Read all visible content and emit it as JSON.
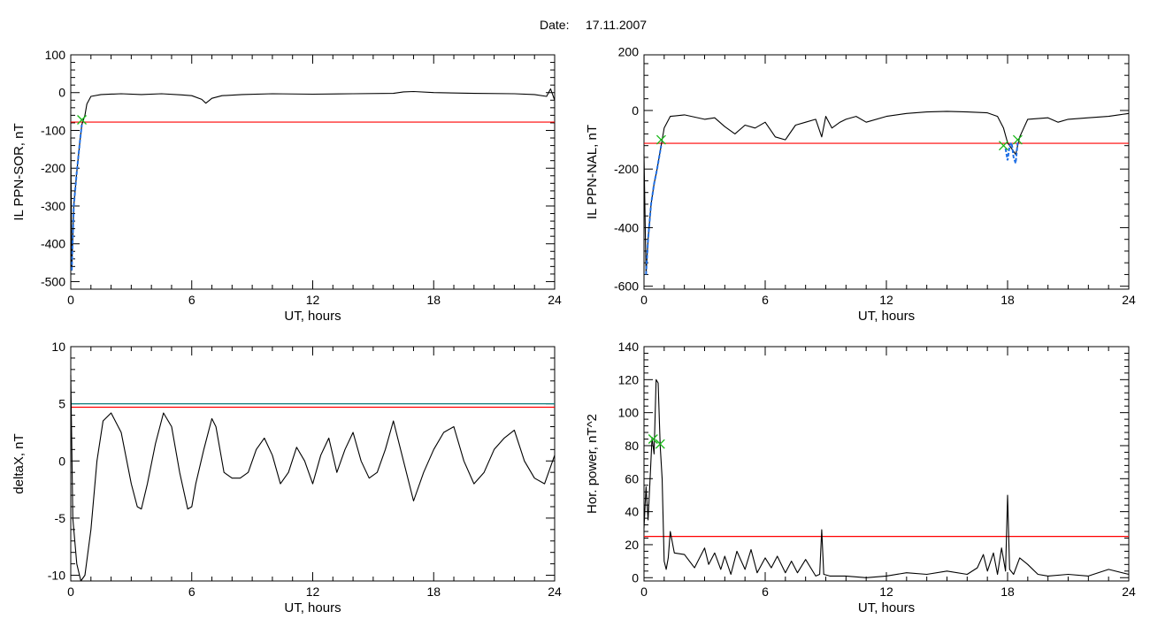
{
  "figure": {
    "date_prefix": "Date:",
    "date": "17.11.2007"
  },
  "colors": {
    "trace": "#000000",
    "threshold": "#ff0000",
    "threshold_alt": "#0a7c7c",
    "highlight": "#1f6fe5",
    "marker": "#19b919"
  },
  "chart_data": [
    {
      "type": "line",
      "title": "",
      "xlabel": "UT, hours",
      "ylabel": "IL PPN-SOR, nT",
      "xlim": [
        0,
        24
      ],
      "ylim": [
        -520,
        100
      ],
      "xticks": [
        0,
        6,
        12,
        18,
        24
      ],
      "yticks": [
        100,
        0,
        -100,
        -200,
        -300,
        -400,
        -500
      ],
      "threshold": -78,
      "series": [
        {
          "values": {
            "x": [
              0,
              0.05,
              0.15,
              0.3,
              0.45,
              0.55,
              0.7,
              0.8,
              1.0,
              1.5,
              2.5,
              3.5,
              4.5,
              5.5,
              6.0,
              6.5,
              6.7,
              7.0,
              7.5,
              8.5,
              10,
              12,
              14,
              16,
              16.5,
              17,
              18,
              20,
              22,
              23,
              23.6,
              23.8,
              24
            ],
            "y": [
              -120,
              -470,
              -300,
              -210,
              -130,
              -85,
              -60,
              -30,
              -10,
              -5,
              -3,
              -5,
              -3,
              -6,
              -8,
              -18,
              -28,
              -15,
              -8,
              -5,
              -3,
              -4,
              -3,
              -2,
              2,
              3,
              0,
              -2,
              -3,
              -5,
              -10,
              10,
              -20
            ]
          }
        }
      ],
      "highlight": {
        "x": [
          0.05,
          0.15,
          0.3,
          0.45,
          0.55
        ],
        "y": [
          -470,
          -300,
          -210,
          -130,
          -85
        ]
      },
      "markers": [
        {
          "x": 0.55,
          "y": -72
        }
      ]
    },
    {
      "type": "line",
      "title": "",
      "xlabel": "UT, hours",
      "ylabel": "IL PPN-NAL, nT",
      "xlim": [
        0,
        24
      ],
      "ylim": [
        -610,
        190
      ],
      "xticks": [
        0,
        6,
        12,
        18,
        24
      ],
      "yticks": [
        200,
        0,
        -200,
        -400,
        -600
      ],
      "threshold": -112,
      "series": [
        {
          "values": {
            "x": [
              0,
              0.1,
              0.2,
              0.35,
              0.5,
              0.65,
              0.85,
              1.0,
              1.3,
              2.0,
              3.0,
              3.5,
              4.0,
              4.5,
              5.0,
              5.5,
              6.0,
              6.5,
              7.0,
              7.5,
              8.0,
              8.5,
              8.8,
              9.0,
              9.3,
              9.7,
              10.0,
              10.5,
              11.0,
              12.0,
              13.0,
              14.0,
              15.0,
              16.0,
              17.0,
              17.5,
              17.8,
              18.0,
              18.2,
              18.4,
              18.6,
              19.0,
              20.0,
              20.5,
              21.0,
              22.0,
              23.0,
              23.5,
              24
            ],
            "y": [
              -150,
              -560,
              -440,
              -320,
              -250,
              -200,
              -120,
              -60,
              -20,
              -15,
              -30,
              -25,
              -55,
              -80,
              -50,
              -60,
              -40,
              -90,
              -100,
              -50,
              -40,
              -30,
              -90,
              -20,
              -60,
              -40,
              -30,
              -20,
              -40,
              -20,
              -10,
              -5,
              -3,
              -5,
              -8,
              -20,
              -60,
              -110,
              -130,
              -150,
              -90,
              -30,
              -25,
              -40,
              -30,
              -25,
              -20,
              -15,
              -10
            ]
          }
        }
      ],
      "highlight": {
        "x": [
          0.1,
          0.2,
          0.35,
          0.5,
          0.65,
          0.85,
          17.9,
          18.0,
          18.1,
          18.2,
          18.3,
          18.4,
          18.5
        ],
        "y": [
          -560,
          -440,
          -320,
          -250,
          -200,
          -120,
          -130,
          -170,
          -120,
          -110,
          -160,
          -180,
          -110
        ]
      },
      "markers": [
        {
          "x": 0.85,
          "y": -100
        },
        {
          "x": 17.8,
          "y": -120
        },
        {
          "x": 18.5,
          "y": -100
        }
      ]
    },
    {
      "type": "line",
      "title": "",
      "xlabel": "UT, hours",
      "ylabel": "deltaX, nT",
      "xlim": [
        0,
        24
      ],
      "ylim": [
        -10.5,
        10
      ],
      "xticks": [
        0,
        6,
        12,
        18,
        24
      ],
      "yticks": [
        10,
        5,
        0,
        -5,
        -10
      ],
      "threshold": 4.7,
      "threshold_alt": 5.0,
      "series": [
        {
          "values": {
            "x": [
              0,
              0.1,
              0.3,
              0.5,
              0.7,
              1.0,
              1.3,
              1.6,
              2.0,
              2.5,
              3.0,
              3.3,
              3.5,
              3.8,
              4.2,
              4.6,
              5.0,
              5.4,
              5.8,
              6.0,
              6.2,
              6.6,
              7.0,
              7.2,
              7.6,
              8.0,
              8.4,
              8.8,
              9.2,
              9.6,
              10.0,
              10.4,
              10.8,
              11.2,
              11.6,
              12.0,
              12.4,
              12.8,
              13.2,
              13.6,
              14.0,
              14.4,
              14.8,
              15.2,
              15.6,
              16.0,
              16.5,
              17.0,
              17.5,
              18.0,
              18.5,
              19.0,
              19.5,
              20.0,
              20.5,
              21.0,
              21.5,
              22.0,
              22.5,
              23.0,
              23.5,
              24.0
            ],
            "y": [
              7.5,
              -5,
              -9,
              -10.5,
              -10,
              -6,
              0,
              3.5,
              4.2,
              2.5,
              -2,
              -4,
              -4.2,
              -2,
              1.5,
              4.2,
              3,
              -1,
              -4.2,
              -4,
              -2,
              1,
              3.7,
              3,
              -1,
              -1.5,
              -1.5,
              -1,
              1,
              2,
              0.5,
              -2,
              -1,
              1.2,
              0,
              -2,
              0.5,
              2,
              -1,
              1,
              2.5,
              0,
              -1.5,
              -1,
              1,
              3.5,
              0,
              -3.5,
              -1,
              1,
              2.5,
              3,
              0,
              -2,
              -1,
              1,
              2,
              2.7,
              0,
              -1.5,
              -2,
              0.5
            ]
          }
        }
      ],
      "highlight": null,
      "markers": []
    },
    {
      "type": "line",
      "title": "",
      "xlabel": "UT, hours",
      "ylabel": "Hor. power, nT^2",
      "xlim": [
        0,
        24
      ],
      "ylim": [
        -2,
        140
      ],
      "xticks": [
        0,
        6,
        12,
        18,
        24
      ],
      "yticks": [
        140,
        120,
        100,
        80,
        60,
        40,
        20,
        0
      ],
      "threshold": 25,
      "series": [
        {
          "values": {
            "x": [
              0,
              0.1,
              0.2,
              0.3,
              0.4,
              0.5,
              0.6,
              0.7,
              0.8,
              0.9,
              1.0,
              1.1,
              1.2,
              1.3,
              1.5,
              2.0,
              2.5,
              3.0,
              3.2,
              3.5,
              3.8,
              4.0,
              4.3,
              4.6,
              5.0,
              5.3,
              5.6,
              6.0,
              6.3,
              6.6,
              7.0,
              7.3,
              7.6,
              8.0,
              8.5,
              8.7,
              8.8,
              8.9,
              9.2,
              10,
              11,
              12,
              13,
              14,
              15,
              16,
              16.5,
              16.8,
              17.0,
              17.3,
              17.5,
              17.7,
              17.9,
              18.0,
              18.1,
              18.3,
              18.6,
              19.0,
              19.5,
              20,
              21,
              22,
              23,
              24
            ],
            "y": [
              30,
              55,
              35,
              60,
              85,
              75,
              120,
              118,
              80,
              60,
              10,
              5,
              12,
              28,
              15,
              14,
              6,
              18,
              8,
              15,
              5,
              13,
              2,
              16,
              5,
              17,
              3,
              12,
              6,
              13,
              3,
              10,
              3,
              11,
              1,
              2,
              29,
              2,
              1,
              1,
              0,
              1,
              3,
              2,
              4,
              2,
              6,
              14,
              4,
              15,
              2,
              18,
              4,
              50,
              5,
              2,
              12,
              8,
              2,
              1,
              2,
              1,
              5,
              2
            ]
          }
        }
      ],
      "highlight": null,
      "markers": [
        {
          "x": 0.45,
          "y": 84
        },
        {
          "x": 0.8,
          "y": 81
        }
      ]
    }
  ]
}
